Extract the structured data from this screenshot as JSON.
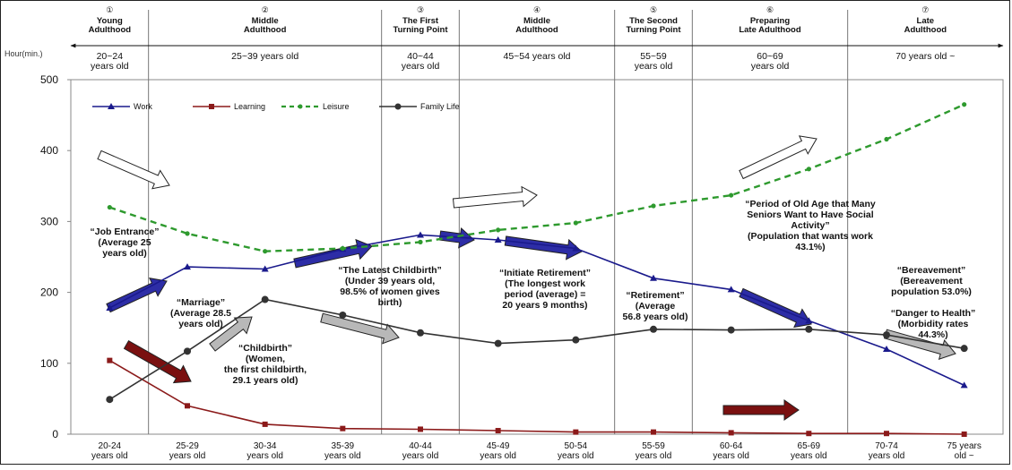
{
  "chart_data": {
    "type": "line",
    "ylabel": "Hour(min.)",
    "ylim": [
      0,
      500
    ],
    "yticks": [
      0,
      100,
      200,
      300,
      400,
      500
    ],
    "grid": false,
    "legend_position": "top-left",
    "categories": [
      [
        "20-24",
        "years old"
      ],
      [
        "25-29",
        "years old"
      ],
      [
        "30-34",
        "years old"
      ],
      [
        "35-39",
        "years old"
      ],
      [
        "40-44",
        "years old"
      ],
      [
        "45-49",
        "years old"
      ],
      [
        "50-54",
        "years old"
      ],
      [
        "55-59",
        "years old"
      ],
      [
        "60-64",
        "years old"
      ],
      [
        "65-69",
        "years old"
      ],
      [
        "70-74",
        "years old"
      ],
      [
        "75 years",
        "old ~"
      ]
    ],
    "series": [
      {
        "name": "Work",
        "color": "#1a1a8c",
        "style": "solid",
        "marker": "triangle",
        "values": [
          178,
          236,
          233,
          261,
          281,
          274,
          262,
          220,
          204,
          160,
          120,
          69
        ]
      },
      {
        "name": "Learning",
        "color": "#8b1a1a",
        "style": "solid",
        "marker": "square",
        "values": [
          104,
          40,
          14,
          8,
          7,
          5,
          3,
          3,
          2,
          1,
          1,
          0
        ]
      },
      {
        "name": "Leisure",
        "color": "#2e9a2e",
        "style": "dashed",
        "marker": "dot",
        "values": [
          320,
          283,
          258,
          262,
          271,
          288,
          298,
          322,
          337,
          374,
          416,
          465
        ]
      },
      {
        "name": "Family Life",
        "color": "#333333",
        "style": "solid",
        "marker": "circle",
        "values": [
          49,
          117,
          190,
          168,
          143,
          128,
          133,
          148,
          147,
          148,
          140,
          121
        ]
      }
    ],
    "stages": [
      {
        "num": "①",
        "name": [
          "Young",
          "Adulthood"
        ],
        "age": [
          "20~24",
          "years old"
        ]
      },
      {
        "num": "②",
        "name": [
          "Middle",
          "Adulthood"
        ],
        "age": [
          "25~39 years old"
        ]
      },
      {
        "num": "③",
        "name": [
          "The First",
          "Turning Point"
        ],
        "age": [
          "40~44",
          "years old"
        ]
      },
      {
        "num": "④",
        "name": [
          "Middle",
          "Adulthood"
        ],
        "age": [
          "45~54 years old"
        ]
      },
      {
        "num": "⑤",
        "name": [
          "The Second",
          "Turning Point"
        ],
        "age": [
          "55~59",
          "years old"
        ]
      },
      {
        "num": "⑥",
        "name": [
          "Preparing",
          "Late Adulthood"
        ],
        "age": [
          "60~69",
          "years old"
        ]
      },
      {
        "num": "⑦",
        "name": [
          "Late",
          "Adulthood"
        ],
        "age": [
          "70 years old ~"
        ]
      }
    ],
    "annotations": [
      {
        "lines": [
          "“Job Entrance”",
          "(Average 25",
          "years old)"
        ]
      },
      {
        "lines": [
          "“Marriage”",
          "(Average 28.5",
          "years old)"
        ]
      },
      {
        "lines": [
          "“Childbirth”",
          "(Women,",
          "the first childbirth,",
          "29.1 years old)"
        ]
      },
      {
        "lines": [
          "“The Latest Childbirth”",
          "(Under 39 years old,",
          "98.5% of women gives",
          "birth)"
        ]
      },
      {
        "lines": [
          "“Initiate Retirement”",
          "(The longest work",
          "period (average) =",
          "20 years 9 months)"
        ]
      },
      {
        "lines": [
          "“Retirement”",
          "(Average",
          "56.8 years old)"
        ]
      },
      {
        "lines": [
          "“Period of Old Age that Many",
          "Seniors Want to Have Social",
          "Activity”",
          "(Population that wants work",
          "43.1%)"
        ]
      },
      {
        "lines": [
          "“Bereavement”",
          "(Bereavement",
          "population 53.0%)"
        ]
      },
      {
        "lines": [
          "“Danger to Health”",
          "(Morbidity rates",
          "44.3%)"
        ]
      }
    ]
  }
}
